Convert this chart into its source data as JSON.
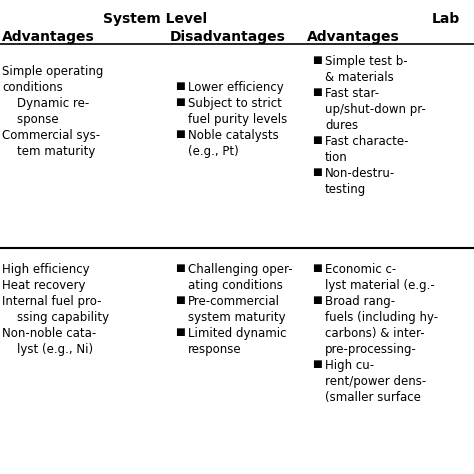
{
  "bg_color": "#ffffff",
  "text_color": "#000000",
  "font_size": 8.5,
  "header_font_size": 10,
  "title1": "System Level",
  "title2": "Lab",
  "col1_header": "Advantages",
  "col2_header": "Disadvantages",
  "col3_header": "Advantages",
  "row1_col1_lines": [
    [
      "Simple operating",
      0
    ],
    [
      "conditions",
      1
    ],
    [
      "    Dynamic re-",
      2
    ],
    [
      "    sponse",
      3
    ],
    [
      "Commercial sys-",
      4
    ],
    [
      "    tem maturity",
      5
    ]
  ],
  "row1_col2_lines": [
    [
      "■",
      "Lower efficiency",
      1
    ],
    [
      "■",
      "Subject to strict",
      2
    ],
    [
      "",
      "fuel purity levels",
      3
    ],
    [
      "■",
      "Noble catalysts",
      4
    ],
    [
      "",
      "(e.g., Pt)",
      5
    ]
  ],
  "row1_col3_lines": [
    [
      "■",
      "Simple test b-",
      0
    ],
    [
      "",
      "& materials",
      1
    ],
    [
      "■",
      "Fast star-",
      2
    ],
    [
      "",
      "up/shut-down pr-",
      3
    ],
    [
      "",
      "dures",
      4
    ],
    [
      "■",
      "Fast characte-",
      5
    ],
    [
      "",
      "tion",
      6
    ],
    [
      "■",
      "Non-destru-",
      7
    ],
    [
      "",
      "testing",
      8
    ]
  ],
  "row2_col1_lines": [
    [
      "High efficiency",
      0
    ],
    [
      "Heat recovery",
      1
    ],
    [
      "Internal fuel pro-",
      2
    ],
    [
      "    ssing capability",
      3
    ],
    [
      "Non-noble cata-",
      4
    ],
    [
      "    lyst (e.g., Ni)",
      5
    ]
  ],
  "row2_col2_lines": [
    [
      "■",
      "Challenging oper-",
      0
    ],
    [
      "",
      "ating conditions",
      1
    ],
    [
      "■",
      "Pre-commercial",
      2
    ],
    [
      "",
      "system maturity",
      3
    ],
    [
      "■",
      "Limited dynamic",
      4
    ],
    [
      "",
      "response",
      5
    ]
  ],
  "row2_col3_lines": [
    [
      "■",
      "Economic c-",
      0
    ],
    [
      "",
      "lyst material (e.g.-",
      1
    ],
    [
      "■",
      "Broad rang-",
      2
    ],
    [
      "",
      "fuels (including hy-",
      3
    ],
    [
      "",
      "carbons) & inter-",
      4
    ],
    [
      "",
      "pre-processing-",
      5
    ],
    [
      "■",
      "High cu-",
      6
    ],
    [
      "",
      "rent/power dens-",
      7
    ],
    [
      "",
      "(smaller surface",
      8
    ]
  ]
}
